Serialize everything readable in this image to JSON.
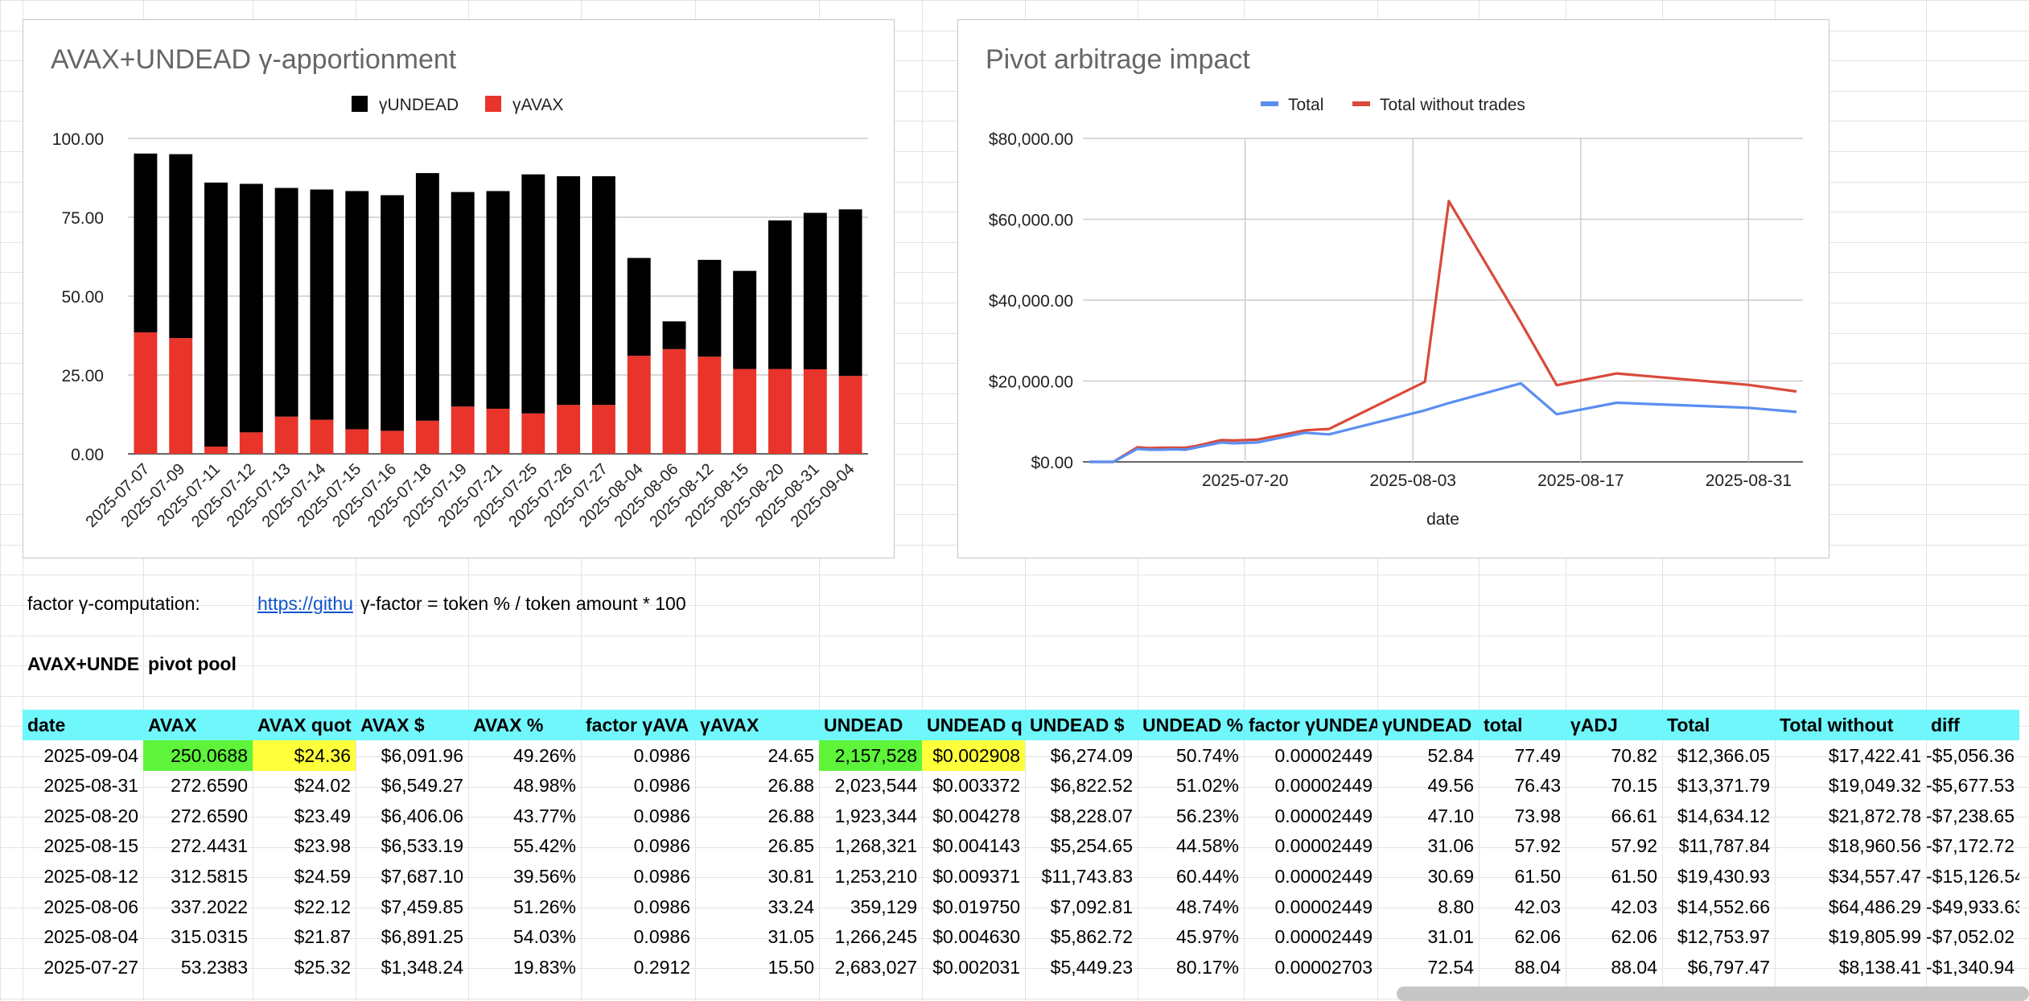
{
  "colors": {
    "undead_bar": "#000000",
    "avax_bar": "#e8342b",
    "total_line": "#5b8ef1",
    "without_trades_line": "#d9493a",
    "header_fill": "#6ff7fb",
    "green_fill": "#5df43a",
    "yellow_fill": "#ffff3b",
    "link": "#1155cc"
  },
  "chart_data": [
    {
      "type": "bar",
      "stacked": true,
      "title": "AVAX+UNDEAD γ-apportionment",
      "legend_position": "top",
      "categories": [
        "2025-07-07",
        "2025-07-09",
        "2025-07-11",
        "2025-07-12",
        "2025-07-13",
        "2025-07-14",
        "2025-07-15",
        "2025-07-16",
        "2025-07-18",
        "2025-07-19",
        "2025-07-21",
        "2025-07-25",
        "2025-07-26",
        "2025-07-27",
        "2025-08-04",
        "2025-08-06",
        "2025-08-12",
        "2025-08-15",
        "2025-08-20",
        "2025-08-31",
        "2025-09-04"
      ],
      "series": [
        {
          "name": "γAVAX",
          "values": [
            38.5,
            36.7,
            2.3,
            6.8,
            11.8,
            10.8,
            7.8,
            7.3,
            10.5,
            15.0,
            14.3,
            12.8,
            15.5,
            15.5,
            31.1,
            33.2,
            30.8,
            26.9,
            26.9,
            26.8,
            24.7
          ]
        },
        {
          "name": "γUNDEAD",
          "values": [
            56.7,
            58.3,
            83.7,
            78.8,
            72.5,
            73.0,
            75.5,
            74.7,
            78.5,
            68.0,
            69.0,
            75.8,
            72.5,
            72.5,
            31.0,
            8.8,
            30.7,
            31.1,
            47.1,
            49.6,
            52.8
          ]
        }
      ],
      "ylim": [
        0,
        100
      ],
      "yticks": [
        "100.00",
        "75.00",
        "50.00",
        "25.00",
        "0.00"
      ],
      "grid": true
    },
    {
      "type": "line",
      "title": "Pivot arbitrage impact",
      "legend_position": "top",
      "xlabel": "date",
      "xticks": [
        "2025-07-20",
        "2025-08-03",
        "2025-08-17",
        "2025-08-31"
      ],
      "yticks": [
        "$80,000.00",
        "$60,000.00",
        "$40,000.00",
        "$20,000.00",
        "$0.00"
      ],
      "ylim": [
        0,
        80000
      ],
      "x": [
        "2025-07-07",
        "2025-07-09",
        "2025-07-11",
        "2025-07-12",
        "2025-07-13",
        "2025-07-14",
        "2025-07-15",
        "2025-07-16",
        "2025-07-18",
        "2025-07-19",
        "2025-07-21",
        "2025-07-25",
        "2025-07-26",
        "2025-07-27",
        "2025-08-04",
        "2025-08-06",
        "2025-08-12",
        "2025-08-15",
        "2025-08-20",
        "2025-08-31",
        "2025-09-04"
      ],
      "series": [
        {
          "name": "Total",
          "values": [
            0,
            0,
            3200,
            3000,
            3000,
            3100,
            3000,
            3600,
            4800,
            4600,
            4800,
            7200,
            7000,
            6797,
            12754,
            14553,
            19431,
            11788,
            14634,
            13372,
            12366
          ]
        },
        {
          "name": "Total without trades",
          "values": [
            0,
            0,
            3600,
            3400,
            3500,
            3500,
            3500,
            4000,
            5400,
            5300,
            5500,
            7800,
            8000,
            8138,
            19806,
            64486,
            34557,
            18961,
            21873,
            19049,
            17422
          ]
        }
      ],
      "grid": true
    }
  ],
  "info": {
    "factor_label": "factor γ-computation:",
    "link_text": "https://githu",
    "formula": "γ-factor = token % / token amount * 100",
    "pool_label_a": "AVAX+UNDE",
    "pool_label_b": "pivot pool"
  },
  "table": {
    "headers": [
      "date",
      "AVAX",
      "AVAX quot",
      "AVAX $",
      "AVAX %",
      "factor γAVA",
      "γAVAX",
      "UNDEAD",
      "UNDEAD q",
      "UNDEAD $",
      "UNDEAD %",
      "factor γUNDEA",
      "γUNDEAD",
      "total",
      "γADJ",
      "Total",
      "Total without",
      "diff"
    ],
    "rows": [
      [
        "2025-09-04",
        "250.0688",
        "$24.36",
        "$6,091.96",
        "49.26%",
        "0.0986",
        "24.65",
        "2,157,528",
        "$0.002908",
        "$6,274.09",
        "50.74%",
        "0.00002449",
        "52.84",
        "77.49",
        "70.82",
        "$12,366.05",
        "$17,422.41",
        "-$5,056.36"
      ],
      [
        "2025-08-31",
        "272.6590",
        "$24.02",
        "$6,549.27",
        "48.98%",
        "0.0986",
        "26.88",
        "2,023,544",
        "$0.003372",
        "$6,822.52",
        "51.02%",
        "0.00002449",
        "49.56",
        "76.43",
        "70.15",
        "$13,371.79",
        "$19,049.32",
        "-$5,677.53"
      ],
      [
        "2025-08-20",
        "272.6590",
        "$23.49",
        "$6,406.06",
        "43.77%",
        "0.0986",
        "26.88",
        "1,923,344",
        "$0.004278",
        "$8,228.07",
        "56.23%",
        "0.00002449",
        "47.10",
        "73.98",
        "66.61",
        "$14,634.12",
        "$21,872.78",
        "-$7,238.65"
      ],
      [
        "2025-08-15",
        "272.4431",
        "$23.98",
        "$6,533.19",
        "55.42%",
        "0.0986",
        "26.85",
        "1,268,321",
        "$0.004143",
        "$5,254.65",
        "44.58%",
        "0.00002449",
        "31.06",
        "57.92",
        "57.92",
        "$11,787.84",
        "$18,960.56",
        "-$7,172.72"
      ],
      [
        "2025-08-12",
        "312.5815",
        "$24.59",
        "$7,687.10",
        "39.56%",
        "0.0986",
        "30.81",
        "1,253,210",
        "$0.009371",
        "$11,743.83",
        "60.44%",
        "0.00002449",
        "30.69",
        "61.50",
        "61.50",
        "$19,430.93",
        "$34,557.47",
        "-$15,126.54"
      ],
      [
        "2025-08-06",
        "337.2022",
        "$22.12",
        "$7,459.85",
        "51.26%",
        "0.0986",
        "33.24",
        "359,129",
        "$0.019750",
        "$7,092.81",
        "48.74%",
        "0.00002449",
        "8.80",
        "42.03",
        "42.03",
        "$14,552.66",
        "$64,486.29",
        "-$49,933.63"
      ],
      [
        "2025-08-04",
        "315.0315",
        "$21.87",
        "$6,891.25",
        "54.03%",
        "0.0986",
        "31.05",
        "1,266,245",
        "$0.004630",
        "$5,862.72",
        "45.97%",
        "0.00002449",
        "31.01",
        "62.06",
        "62.06",
        "$12,753.97",
        "$19,805.99",
        "-$7,052.02"
      ],
      [
        "2025-07-27",
        "53.2383",
        "$25.32",
        "$1,348.24",
        "19.83%",
        "0.2912",
        "15.50",
        "2,683,027",
        "$0.002031",
        "$5,449.23",
        "80.17%",
        "0.00002703",
        "72.54",
        "88.04",
        "88.04",
        "$6,797.47",
        "$8,138.41",
        "-$1,340.94"
      ]
    ]
  }
}
